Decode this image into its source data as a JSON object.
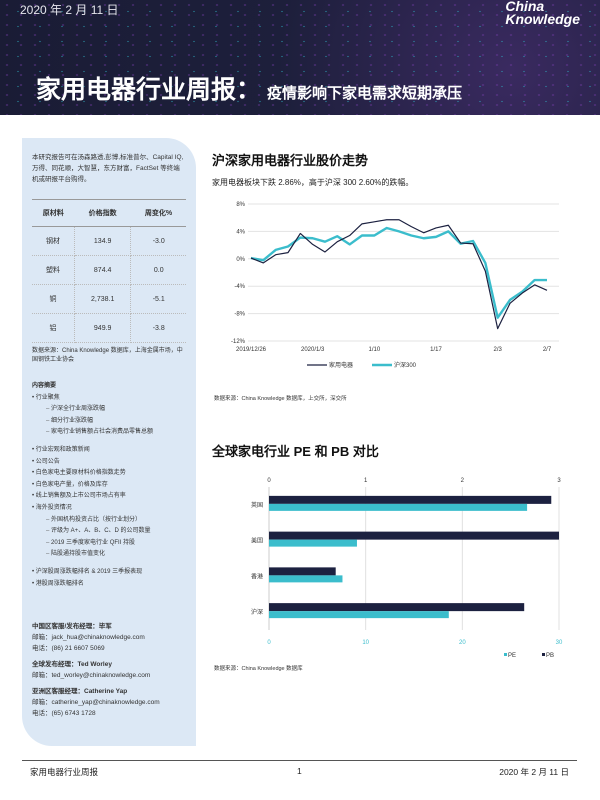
{
  "header": {
    "date": "2020 年 2 月 11 日",
    "logo_line1": "China",
    "logo_line2": "Knowledge",
    "title": "家用电器行业周报：",
    "subtitle": "疫情影响下家电需求短期承压"
  },
  "sidebar": {
    "intro": "本研究报告可在汤森路透,彭博,标准普尔、Capital IQ,万得、同花顺，大智慧，东方财富，FactSet 等终端机或研报平台购得。",
    "table": {
      "headers": [
        "原材料",
        "价格指数",
        "周变化%"
      ],
      "rows": [
        [
          "钢材",
          "134.9",
          "-3.0"
        ],
        [
          "塑料",
          "874.4",
          "0.0"
        ],
        [
          "铜",
          "2,738.1",
          "-5.1"
        ],
        [
          "铝",
          "949.9",
          "-3.8"
        ]
      ]
    },
    "table_source": "数据来源：China Knowledge 数据库，上海金属市场，中国钢铁工业协会",
    "toc_title": "内容摘要",
    "toc": [
      {
        "t": "b",
        "label": "行业聚焦"
      },
      {
        "t": "s",
        "label": "沪深全行业周涨跌幅"
      },
      {
        "t": "s",
        "label": "细分行业涨跌幅"
      },
      {
        "t": "s",
        "label": "家电行业销售额占社会消费品零售总额"
      },
      {
        "t": "g",
        "label": ""
      },
      {
        "t": "b",
        "label": "行业宏观和政策新闻"
      },
      {
        "t": "b",
        "label": "公司公告"
      },
      {
        "t": "b",
        "label": "白色家电主要原材料价格指数走势"
      },
      {
        "t": "b",
        "label": "白色家电产量，价格及库存"
      },
      {
        "t": "b",
        "label": "线上销售额及上市公司市场占有率"
      },
      {
        "t": "b",
        "label": "海外投资情况"
      },
      {
        "t": "s",
        "label": "外国机构投资占比（按行业划分）"
      },
      {
        "t": "s",
        "label": "评级为 A+、A、B、C、D 的公司数量"
      },
      {
        "t": "s",
        "label": "2019 三季度家电行业 QFII 持股"
      },
      {
        "t": "s",
        "label": "陆股通持股市值变化"
      },
      {
        "t": "g",
        "label": ""
      },
      {
        "t": "b",
        "label": "沪深股周涨跌幅排名 & 2019 三季报表现"
      },
      {
        "t": "b",
        "label": "港股周涨跌幅排名"
      }
    ],
    "contacts": [
      {
        "title": "中国区客服/发布经理：毕军",
        "lines": [
          "邮箱：jack_hua@chinaknowledge.com",
          "电话：(86) 21 6607 5069"
        ]
      },
      {
        "title": "全球发布经理：Ted Worley",
        "lines": [
          "邮箱：ted_worley@chinaknowledge.com"
        ]
      },
      {
        "title": "亚洲区客服经理：Catherine Yap",
        "lines": [
          "邮箱：catherine_yap@chinaknowledge.com",
          "电话：(65) 6743 1728"
        ]
      }
    ]
  },
  "chart1_title": "沪深家用电器行业股价走势",
  "chart1_subtitle": "家用电器板块下跌 2.86%，高于沪深 300 2.60%的跌幅。",
  "chart1_source": "数据来源：China Knowledge 数据库，上交所，深交所",
  "chart2_title": "全球家电行业 PE 和 PB 对比",
  "chart2_source": "数据来源：China Knowledge 数据库",
  "chart_data": [
    {
      "type": "line",
      "ylim": [
        -12,
        8
      ],
      "yticks": [
        "8%",
        "4%",
        "0%",
        "-4%",
        "-8%",
        "-12%"
      ],
      "ytick_values": [
        8,
        4,
        0,
        -4,
        -8,
        -12
      ],
      "x": [
        "2019/12/26",
        "12/27",
        "12/30",
        "12/31",
        "1/2",
        "2020/1/3",
        "1/6",
        "1/7",
        "1/8",
        "1/9",
        "1/10",
        "1/13",
        "1/14",
        "1/15",
        "1/16",
        "1/17",
        "1/20",
        "1/21",
        "1/22",
        "1/23",
        "2/3",
        "2/4",
        "2/5",
        "2/6",
        "2/7"
      ],
      "xtick_labels": [
        {
          "i": 0,
          "label": "2019/12/26"
        },
        {
          "i": 5,
          "label": "2020/1/3"
        },
        {
          "i": 10,
          "label": "1/10"
        },
        {
          "i": 15,
          "label": "1/17"
        },
        {
          "i": 20,
          "label": "2/3"
        },
        {
          "i": 24,
          "label": "2/7"
        }
      ],
      "series": [
        {
          "name": "家用电器",
          "color": "#1c2140",
          "values": [
            0.1,
            -0.6,
            0.6,
            0.9,
            3.7,
            2.1,
            1.0,
            2.5,
            3.4,
            5.1,
            5.4,
            5.7,
            5.7,
            4.7,
            3.8,
            4.5,
            4.9,
            2.3,
            2.2,
            -1.8,
            -10.2,
            -6.5,
            -5.0,
            -3.8,
            -4.6
          ]
        },
        {
          "name": "沪深300",
          "color": "#3bbdcc",
          "values": [
            0.1,
            -0.2,
            1.3,
            1.8,
            3.1,
            3.0,
            2.5,
            3.3,
            2.1,
            3.4,
            3.4,
            4.5,
            4.0,
            3.4,
            3.0,
            3.2,
            4.0,
            2.2,
            2.6,
            -0.6,
            -8.6,
            -6.0,
            -4.8,
            -3.1,
            -3.1
          ]
        }
      ],
      "legend": "bottom"
    },
    {
      "type": "bar",
      "orientation": "horizontal",
      "categories": [
        "英国",
        "美国",
        "香港",
        "沪深"
      ],
      "top_axis": {
        "range": [
          0,
          3
        ],
        "ticks": [
          "0",
          "1",
          "2",
          "3"
        ]
      },
      "bottom_axis": {
        "range": [
          0,
          30
        ],
        "ticks": [
          "0",
          "10",
          "20",
          "30"
        ]
      },
      "series": [
        {
          "name": "PB",
          "axis": "top",
          "color": "#1c2140",
          "values": [
            2.92,
            3.0,
            0.69,
            2.64
          ]
        },
        {
          "name": "PE",
          "axis": "bottom",
          "color": "#3bbdcc",
          "values": [
            26.7,
            9.1,
            7.6,
            18.6
          ]
        }
      ],
      "legend": "bottom-right"
    }
  ],
  "footer": {
    "left": "家用电器行业周报",
    "page": "1",
    "right": "2020 年 2 月 11 日"
  }
}
